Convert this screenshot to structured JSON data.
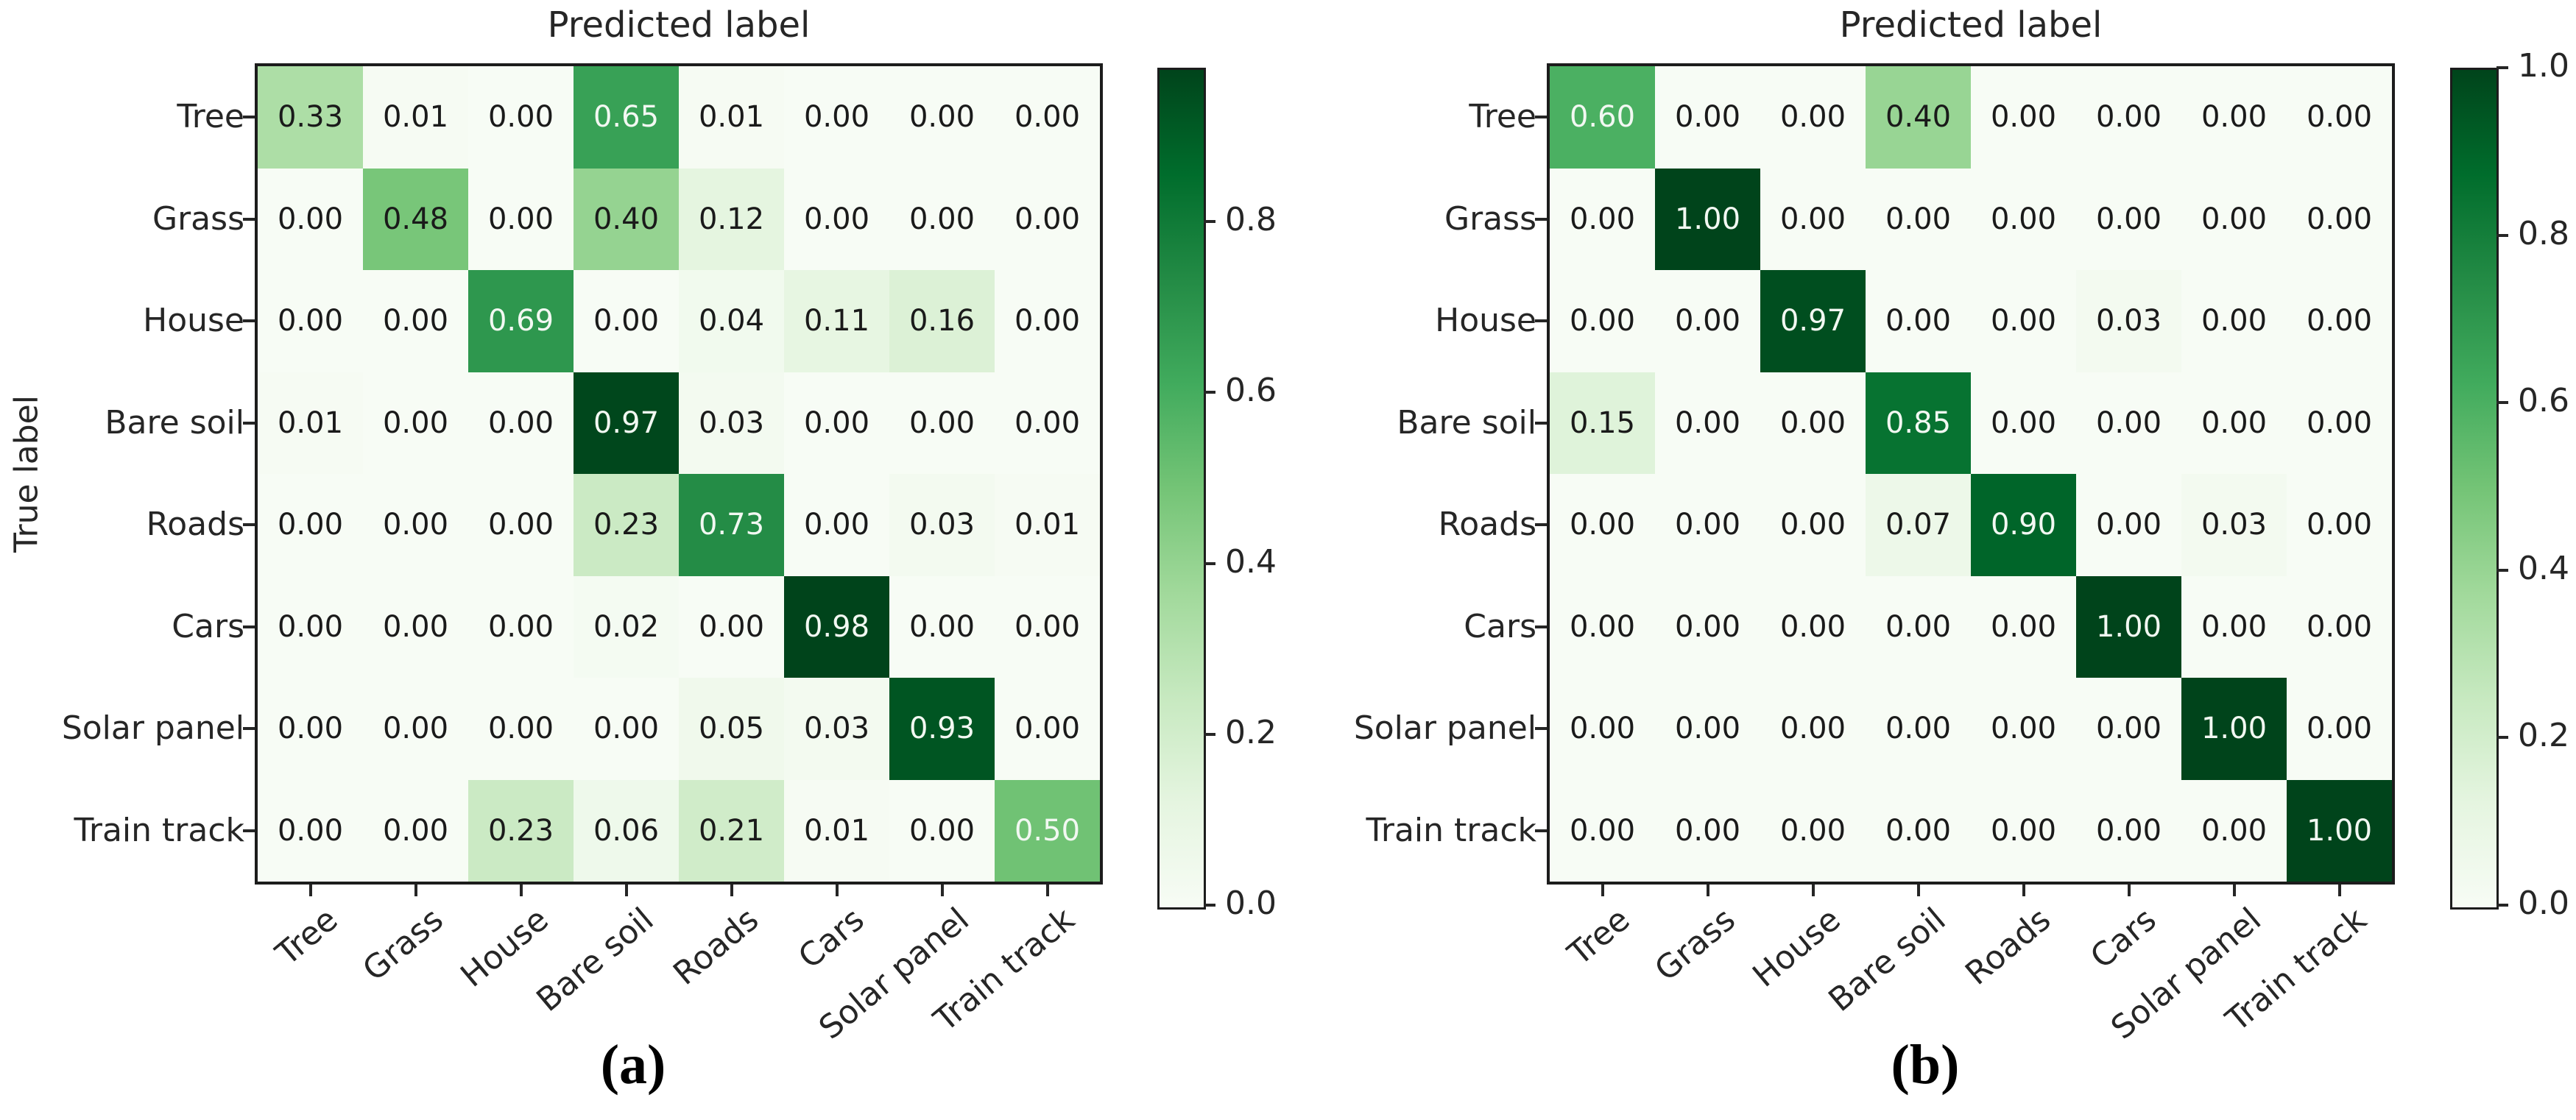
{
  "chart_data": [
    {
      "type": "heatmap",
      "id": "a",
      "caption": "(a)",
      "title": "Predicted label",
      "ylabel": "True label",
      "x_categories": [
        "Tree",
        "Grass",
        "House",
        "Bare soil",
        "Roads",
        "Cars",
        "Solar panel",
        "Train track"
      ],
      "y_categories": [
        "Tree",
        "Grass",
        "House",
        "Bare soil",
        "Roads",
        "Cars",
        "Solar panel",
        "Train track"
      ],
      "values": [
        [
          0.33,
          0.01,
          0.0,
          0.65,
          0.01,
          0.0,
          0.0,
          0.0
        ],
        [
          0.0,
          0.48,
          0.0,
          0.4,
          0.12,
          0.0,
          0.0,
          0.0
        ],
        [
          0.0,
          0.0,
          0.69,
          0.0,
          0.04,
          0.11,
          0.16,
          0.0
        ],
        [
          0.01,
          0.0,
          0.0,
          0.97,
          0.03,
          0.0,
          0.0,
          0.0
        ],
        [
          0.0,
          0.0,
          0.0,
          0.23,
          0.73,
          0.0,
          0.03,
          0.01
        ],
        [
          0.0,
          0.0,
          0.0,
          0.02,
          0.0,
          0.98,
          0.0,
          0.0
        ],
        [
          0.0,
          0.0,
          0.0,
          0.0,
          0.05,
          0.03,
          0.93,
          0.0
        ],
        [
          0.0,
          0.0,
          0.23,
          0.06,
          0.21,
          0.01,
          0.0,
          0.5
        ]
      ],
      "vmin": 0.0,
      "vmax": 0.98,
      "grid": false,
      "colorbar": {
        "position": "right",
        "tick_labels": [
          "0.8",
          "0.6",
          "0.4",
          "0.2",
          "0.0"
        ],
        "tick_values": [
          0.8,
          0.6,
          0.4,
          0.2,
          0.0
        ]
      }
    },
    {
      "type": "heatmap",
      "id": "b",
      "caption": "(b)",
      "title": "Predicted label",
      "ylabel": "",
      "x_categories": [
        "Tree",
        "Grass",
        "House",
        "Bare soil",
        "Roads",
        "Cars",
        "Solar panel",
        "Train track"
      ],
      "y_categories": [
        "Tree",
        "Grass",
        "House",
        "Bare soil",
        "Roads",
        "Cars",
        "Solar panel",
        "Train track"
      ],
      "values": [
        [
          0.6,
          0.0,
          0.0,
          0.4,
          0.0,
          0.0,
          0.0,
          0.0
        ],
        [
          0.0,
          1.0,
          0.0,
          0.0,
          0.0,
          0.0,
          0.0,
          0.0
        ],
        [
          0.0,
          0.0,
          0.97,
          0.0,
          0.0,
          0.03,
          0.0,
          0.0
        ],
        [
          0.15,
          0.0,
          0.0,
          0.85,
          0.0,
          0.0,
          0.0,
          0.0
        ],
        [
          0.0,
          0.0,
          0.0,
          0.07,
          0.9,
          0.0,
          0.03,
          0.0
        ],
        [
          0.0,
          0.0,
          0.0,
          0.0,
          0.0,
          1.0,
          0.0,
          0.0
        ],
        [
          0.0,
          0.0,
          0.0,
          0.0,
          0.0,
          0.0,
          1.0,
          0.0
        ],
        [
          0.0,
          0.0,
          0.0,
          0.0,
          0.0,
          0.0,
          0.0,
          1.0
        ]
      ],
      "vmin": 0.0,
      "vmax": 1.0,
      "grid": false,
      "colorbar": {
        "position": "right",
        "tick_labels": [
          "1.0",
          "0.8",
          "0.6",
          "0.4",
          "0.2",
          "0.0"
        ],
        "tick_values": [
          1.0,
          0.8,
          0.6,
          0.4,
          0.2,
          0.0
        ]
      }
    }
  ],
  "style": {
    "colormap_name": "Greens",
    "colormap_stops": [
      "#f7fcf5",
      "#e5f5e0",
      "#c7e9c0",
      "#a1d99b",
      "#74c476",
      "#41ab5d",
      "#238b45",
      "#006d2c",
      "#00441b"
    ],
    "cell_text_dark": "#1a1a1a",
    "cell_text_light": "#f2f8f2",
    "axis_color": "#262626",
    "white_text_threshold": 0.5
  }
}
